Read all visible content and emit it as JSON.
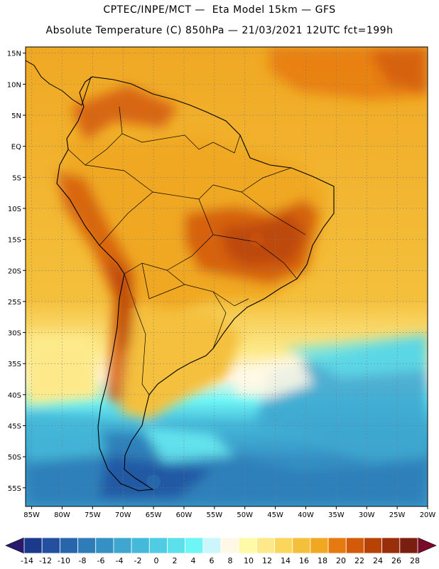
{
  "header": {
    "line1": "CPTEC/INPE/MCT —  Eta Model 15km — GFS",
    "line2": "Absolute Temperature (C) 850hPa — 21/03/2021 12UTC fct=199h"
  },
  "map": {
    "lat_labels": [
      "15N",
      "10N",
      "5N",
      "EQ",
      "5S",
      "10S",
      "15S",
      "20S",
      "25S",
      "30S",
      "35S",
      "40S",
      "45S",
      "50S",
      "55S"
    ],
    "lat_values": [
      15,
      10,
      5,
      0,
      -5,
      -10,
      -15,
      -20,
      -25,
      -30,
      -35,
      -40,
      -45,
      -50,
      -55
    ],
    "lon_labels": [
      "85W",
      "80W",
      "75W",
      "70W",
      "65W",
      "60W",
      "55W",
      "50W",
      "45W",
      "40W",
      "35W",
      "30W",
      "25W",
      "20W"
    ],
    "lon_values": [
      -85,
      -80,
      -75,
      -70,
      -65,
      -60,
      -55,
      -50,
      -45,
      -40,
      -35,
      -30,
      -25,
      -20
    ],
    "extent": {
      "lon_min": -86,
      "lon_max": -20,
      "lat_min": -58,
      "lat_max": 16
    }
  },
  "colorbar": {
    "labels": [
      "-14",
      "-12",
      "-10",
      "-8",
      "-6",
      "-4",
      "-2",
      "0",
      "2",
      "4",
      "6",
      "8",
      "10",
      "12",
      "14",
      "16",
      "18",
      "20",
      "22",
      "24",
      "26",
      "28"
    ],
    "colors": [
      "#1c3a8c",
      "#22509e",
      "#2866ab",
      "#2e7db8",
      "#3590c4",
      "#3ea6cf",
      "#45b9d9",
      "#4fcbe2",
      "#5ce0ec",
      "#6ef5f6",
      "#cbf6fb",
      "#fff8e6",
      "#fffaa8",
      "#fde98a",
      "#fbd65c",
      "#f4c03c",
      "#f0a823",
      "#e67a10",
      "#d35a08",
      "#b84206",
      "#982e0a",
      "#7a1e10"
    ]
  },
  "zones": [
    {
      "name": "north-atlantic-warm",
      "color": "#e67a10",
      "lon": -28,
      "lat": 11
    },
    {
      "name": "amazon",
      "color": "#f0a823",
      "lon": -58,
      "lat": -5
    },
    {
      "name": "central-brazil-hot",
      "color": "#d35a08",
      "lon": -48,
      "lat": -15
    },
    {
      "name": "andes-hot",
      "color": "#c4540a",
      "lon": -69,
      "lat": -25
    },
    {
      "name": "south-atlantic-cold",
      "color": "#3ea6cf",
      "lon": -35,
      "lat": -48
    },
    {
      "name": "patagonia-cold",
      "color": "#2e7db8",
      "lon": -65,
      "lat": -54
    }
  ]
}
